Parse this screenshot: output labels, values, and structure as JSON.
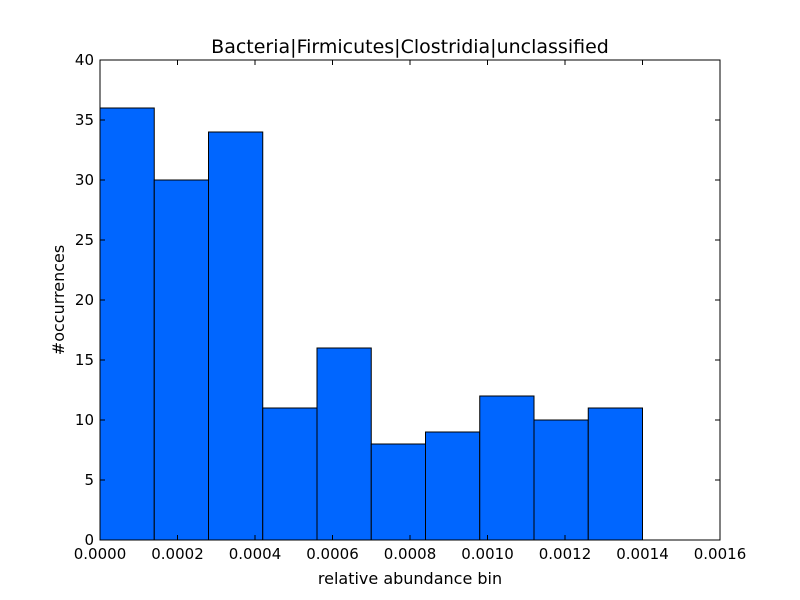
{
  "chart_data": {
    "type": "bar",
    "title": "Bacteria|Firmicutes|Clostridia|unclassified",
    "xlabel": "relative abundance bin",
    "ylabel": "#occurrences",
    "xlim": [
      0,
      0.0016
    ],
    "ylim": [
      0,
      40
    ],
    "grid": false,
    "bar_color": "#0066ff",
    "bin_edges": [
      0,
      0.00014,
      0.00028,
      0.00042,
      0.00056,
      0.0007,
      0.00084,
      0.00098,
      0.00112,
      0.00126,
      0.0014
    ],
    "values": [
      36,
      30,
      34,
      11,
      16,
      8,
      9,
      12,
      10,
      11
    ],
    "x_ticks": [
      {
        "value": 0,
        "label": "0.0000"
      },
      {
        "value": 0.0002,
        "label": "0.0002"
      },
      {
        "value": 0.0004,
        "label": "0.0004"
      },
      {
        "value": 0.0006,
        "label": "0.0006"
      },
      {
        "value": 0.0008,
        "label": "0.0008"
      },
      {
        "value": 0.001,
        "label": "0.0010"
      },
      {
        "value": 0.0012,
        "label": "0.0012"
      },
      {
        "value": 0.0014,
        "label": "0.0014"
      },
      {
        "value": 0.0016,
        "label": "0.0016"
      }
    ],
    "y_ticks": [
      {
        "value": 0,
        "label": "0"
      },
      {
        "value": 5,
        "label": "5"
      },
      {
        "value": 10,
        "label": "10"
      },
      {
        "value": 15,
        "label": "15"
      },
      {
        "value": 20,
        "label": "20"
      },
      {
        "value": 25,
        "label": "25"
      },
      {
        "value": 30,
        "label": "30"
      },
      {
        "value": 35,
        "label": "35"
      },
      {
        "value": 40,
        "label": "40"
      }
    ]
  }
}
